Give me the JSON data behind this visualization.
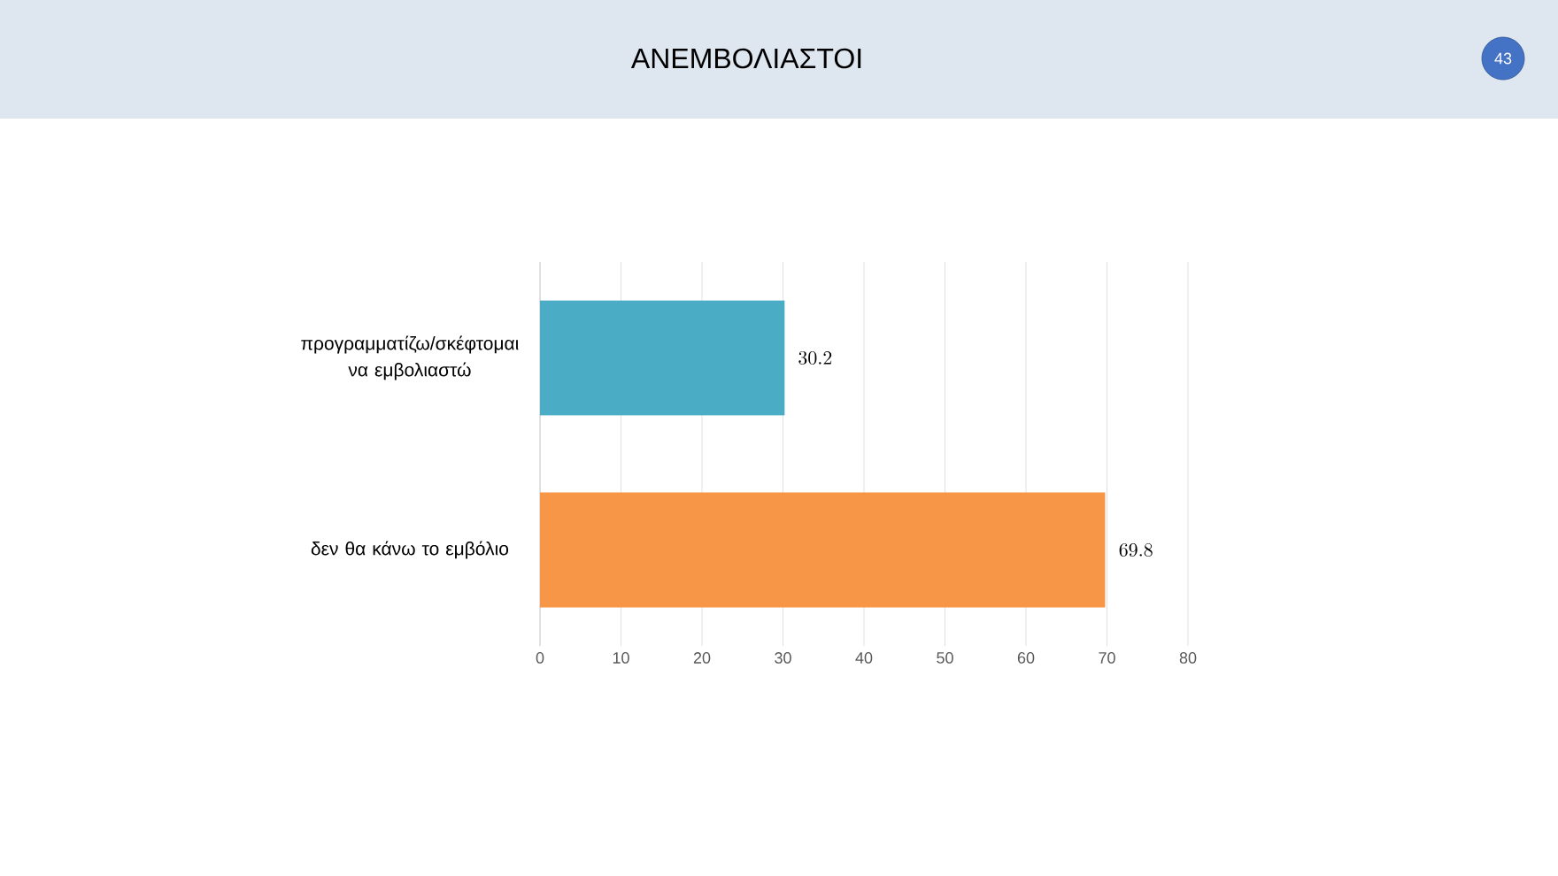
{
  "chart_data": {
    "type": "bar",
    "orientation": "horizontal",
    "title": "ΑΝΕΜΒΟΛΙΑΣΤΟΙ",
    "categories": [
      "προγραμματίζω/σκέφτομαι να εμβολιαστώ",
      "δεν θα κάνω το εμβόλιο"
    ],
    "values": [
      30.2,
      69.8
    ],
    "colors": [
      "#4bacc6",
      "#f79646"
    ],
    "xlim": [
      0,
      80
    ],
    "xticks": [
      0,
      10,
      20,
      30,
      40,
      50,
      60,
      70,
      80
    ],
    "grid": "x",
    "data_labels": true,
    "annotations": [
      "43"
    ]
  }
}
